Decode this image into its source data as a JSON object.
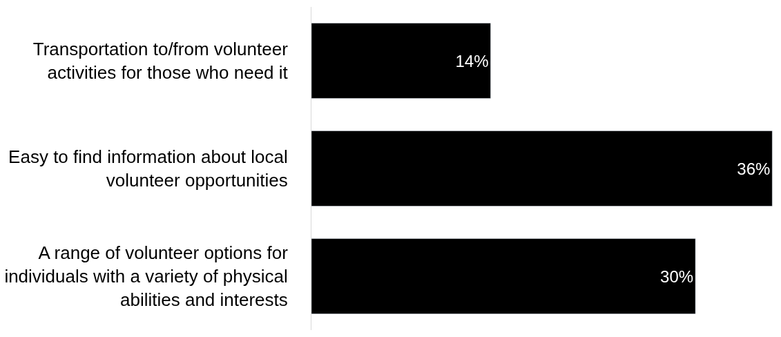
{
  "chart_data": {
    "type": "bar",
    "orientation": "horizontal",
    "categories": [
      "Transportation to/from volunteer activities for those who need it",
      "Easy to find information about local volunteer opportunities",
      "A range of volunteer options for individuals with a variety of physical abilities and interests"
    ],
    "values": [
      14,
      36,
      30
    ],
    "value_labels": [
      "14%",
      "36%",
      "30%"
    ],
    "color": "#000000",
    "legend": false,
    "tick_labels": "y"
  }
}
